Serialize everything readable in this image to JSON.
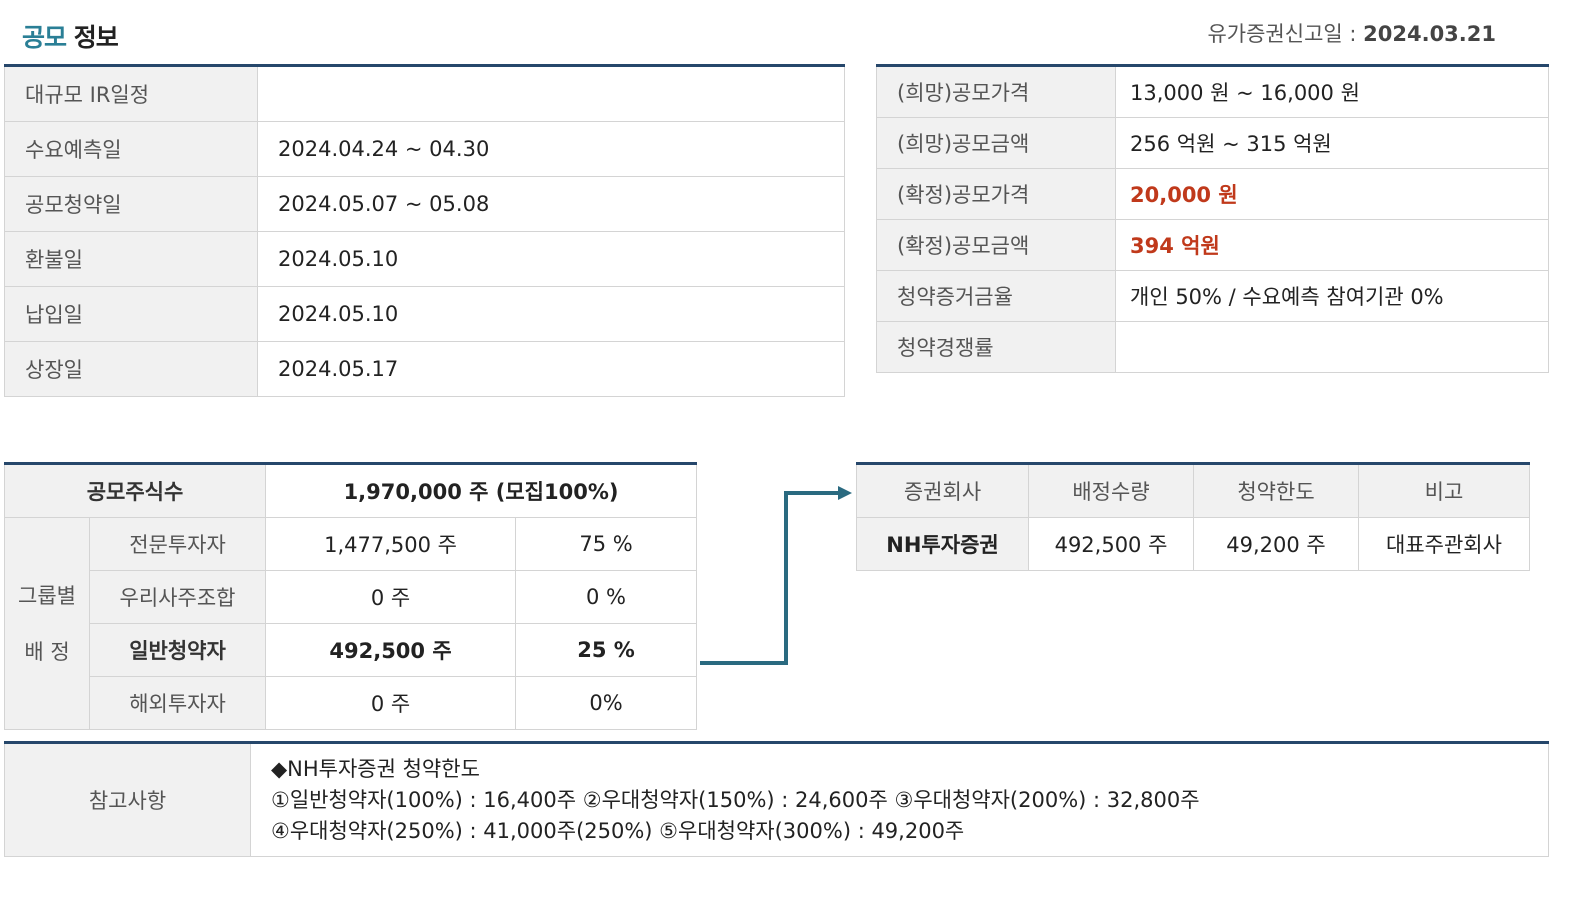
{
  "header": {
    "title_part1": "공모",
    "title_part2": "정보",
    "filing_label": "유가증권신고일 : ",
    "filing_date": "2024.03.21"
  },
  "schedule": [
    {
      "label": "대규모 IR일정",
      "value": ""
    },
    {
      "label": "수요예측일",
      "value": "2024.04.24 ~ 04.30"
    },
    {
      "label": "공모청약일",
      "value": "2024.05.07 ~ 05.08"
    },
    {
      "label": "환불일",
      "value": "2024.05.10"
    },
    {
      "label": "납입일",
      "value": "2024.05.10"
    },
    {
      "label": "상장일",
      "value": "2024.05.17"
    }
  ],
  "pricing": [
    {
      "label": "(희망)공모가격",
      "value": "13,000 원 ~ 16,000 원"
    },
    {
      "label": "(희망)공모금액",
      "value": "256 억원  ~ 315 억원"
    },
    {
      "label": "(확정)공모가격",
      "value": "20,000 원"
    },
    {
      "label": "(확정)공모금액",
      "value": "394 억원"
    },
    {
      "label": "청약증거금율",
      "value": "개인 50% / 수요예측 참여기관 0%"
    },
    {
      "label": "청약경쟁률",
      "value": ""
    }
  ],
  "allocation": {
    "total_label": "공모주식수",
    "total_value": "1,970,000 주 (모집100%)",
    "group_label_line1": "그룹별",
    "group_label_line2": "배 정",
    "rows": [
      {
        "name": "전문투자자",
        "shares": "1,477,500 주",
        "pct": "75 %"
      },
      {
        "name": "우리사주조합",
        "shares": "0 주",
        "pct": "0 %"
      },
      {
        "name": "일반청약자",
        "shares": "492,500 주",
        "pct": "25 %"
      },
      {
        "name": "해외투자자",
        "shares": "0 주",
        "pct": "0%"
      }
    ]
  },
  "brokers": {
    "headers": [
      "증권회사",
      "배정수량",
      "청약한도",
      "비고"
    ],
    "rows": [
      {
        "name": "NH투자증권",
        "allocation": "492,500 주",
        "limit": "49,200 주",
        "note": "대표주관회사"
      }
    ]
  },
  "notes": {
    "label": "참고사항",
    "lines": [
      "◆NH투자증권 청약한도",
      "①일반청약자(100%) : 16,400주 ②우대청약자(150%) : 24,600주 ③우대청약자(200%) : 32,800주",
      "④우대청약자(250%) : 41,000주(250%) ⑤우대청약자(300%) : 49,200주"
    ]
  },
  "colors": {
    "header_accent": "#2a7f96",
    "table_top_border": "#26476b",
    "label_bg": "#f1f1f1",
    "highlight_red": "#c0391b",
    "connector": "#2a6a80"
  },
  "icons": [
    "arrow-connector-icon"
  ]
}
